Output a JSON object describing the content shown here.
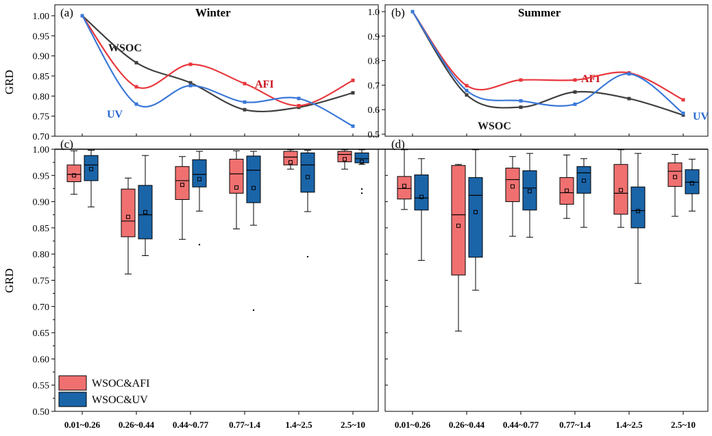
{
  "figure": {
    "panel_letters": [
      "(a)",
      "(b)",
      "(c)",
      "(d)"
    ],
    "titles": [
      "Winter",
      "Summer"
    ],
    "ylabel": "GRD",
    "categories": [
      "0.01~0.26",
      "0.26~0.44",
      "0.44~0.77",
      "0.77~1.4",
      "1.4~2.5",
      "2.5~10"
    ],
    "legend": [
      "WSOC&AFI",
      "WSOC&UV"
    ],
    "colors": {
      "wsoc_line": "#404040",
      "afi_line": "#e8383d",
      "uv_line": "#3a78d8",
      "afi_box": "#f07070",
      "uv_box": "#1a64a8",
      "wsoc_text": "#1a1a1a",
      "afi_text": "#c8141e",
      "uv_text": "#2a6ad0"
    },
    "annotations": {
      "wsoc": "WSOC",
      "afi": "AFI",
      "uv": "UV"
    }
  },
  "chart_data": [
    {
      "type": "line",
      "panel": "(a)",
      "title": "Winter",
      "ylabel": "GRD",
      "ylim": [
        0.7,
        1.0
      ],
      "yticks": [
        "0.70",
        "0.75",
        "0.80",
        "0.85",
        "0.90",
        "0.95",
        "1.00"
      ],
      "categories": [
        "0.01~0.26",
        "0.26~0.44",
        "0.44~0.77",
        "0.77~1.4",
        "1.4~2.5",
        "2.5~10"
      ],
      "series": [
        {
          "name": "WSOC",
          "values": [
            1.0,
            0.883,
            0.833,
            0.766,
            0.772,
            0.808
          ]
        },
        {
          "name": "AFI",
          "values": [
            1.0,
            0.823,
            0.879,
            0.831,
            0.776,
            0.839
          ]
        },
        {
          "name": "UV",
          "values": [
            1.0,
            0.78,
            0.826,
            0.785,
            0.794,
            0.725
          ]
        }
      ]
    },
    {
      "type": "line",
      "panel": "(b)",
      "title": "Summer",
      "ylim": [
        0.5,
        1.0
      ],
      "yticks": [
        "0.5",
        "0.6",
        "0.7",
        "0.8",
        "0.9",
        "1.0"
      ],
      "categories": [
        "0.01~0.26",
        "0.26~0.44",
        "0.44~0.77",
        "0.77~1.4",
        "1.4~2.5",
        "2.5~10"
      ],
      "series": [
        {
          "name": "WSOC",
          "values": [
            1.0,
            0.66,
            0.61,
            0.672,
            0.645,
            0.578
          ]
        },
        {
          "name": "AFI",
          "values": [
            1.0,
            0.698,
            0.721,
            0.721,
            0.75,
            0.64
          ]
        },
        {
          "name": "UV",
          "values": [
            1.0,
            0.678,
            0.636,
            0.622,
            0.746,
            0.585
          ]
        }
      ]
    },
    {
      "type": "box",
      "panel": "(c)",
      "ylabel": "GRD",
      "ylim": [
        0.5,
        1.0
      ],
      "yticks": [
        "0.50",
        "0.55",
        "0.60",
        "0.65",
        "0.70",
        "0.75",
        "0.80",
        "0.85",
        "0.90",
        "0.95",
        "1.00"
      ],
      "categories": [
        "0.01~0.26",
        "0.26~0.44",
        "0.44~0.77",
        "0.77~1.4",
        "1.4~2.5",
        "2.5~10"
      ],
      "series": [
        {
          "name": "WSOC&AFI",
          "boxes": [
            {
              "min": 0.914,
              "q1": 0.938,
              "median": 0.952,
              "q3": 0.97,
              "max": 0.997,
              "mean": 0.95,
              "outliers": []
            },
            {
              "min": 0.762,
              "q1": 0.833,
              "median": 0.863,
              "q3": 0.924,
              "max": 0.945,
              "mean": 0.871,
              "outliers": []
            },
            {
              "min": 0.828,
              "q1": 0.904,
              "median": 0.94,
              "q3": 0.967,
              "max": 0.986,
              "mean": 0.932,
              "outliers": []
            },
            {
              "min": 0.848,
              "q1": 0.916,
              "median": 0.953,
              "q3": 0.981,
              "max": 0.997,
              "mean": 0.927,
              "outliers": []
            },
            {
              "min": 0.962,
              "q1": 0.97,
              "median": 0.985,
              "q3": 0.996,
              "max": 0.999,
              "mean": 0.975,
              "outliers": []
            },
            {
              "min": 0.962,
              "q1": 0.976,
              "median": 0.99,
              "q3": 0.996,
              "max": 0.999,
              "mean": 0.981,
              "outliers": []
            }
          ]
        },
        {
          "name": "WSOC&UV",
          "boxes": [
            {
              "min": 0.89,
              "q1": 0.94,
              "median": 0.97,
              "q3": 0.988,
              "max": 0.998,
              "mean": 0.962,
              "outliers": []
            },
            {
              "min": 0.797,
              "q1": 0.829,
              "median": 0.875,
              "q3": 0.931,
              "max": 0.988,
              "mean": 0.88,
              "outliers": []
            },
            {
              "min": 0.882,
              "q1": 0.928,
              "median": 0.952,
              "q3": 0.98,
              "max": 0.996,
              "mean": 0.943,
              "outliers": [
                0.818
              ]
            },
            {
              "min": 0.855,
              "q1": 0.898,
              "median": 0.96,
              "q3": 0.987,
              "max": 0.996,
              "mean": 0.926,
              "outliers": [
                0.693
              ]
            },
            {
              "min": 0.881,
              "q1": 0.918,
              "median": 0.97,
              "q3": 0.993,
              "max": 0.998,
              "mean": 0.947,
              "outliers": [
                0.795
              ]
            },
            {
              "min": 0.971,
              "q1": 0.974,
              "median": 0.982,
              "q3": 0.993,
              "max": 0.999,
              "mean": 0.976,
              "outliers": [
                0.924,
                0.916
              ]
            }
          ]
        }
      ]
    },
    {
      "type": "box",
      "panel": "(d)",
      "ylim": [
        0.5,
        1.0
      ],
      "categories": [
        "0.01~0.26",
        "0.26~0.44",
        "0.44~0.77",
        "0.77~1.4",
        "1.4~2.5",
        "2.5~10"
      ],
      "series": [
        {
          "name": "WSOC&AFI",
          "boxes": [
            {
              "min": 0.885,
              "q1": 0.905,
              "median": 0.925,
              "q3": 0.948,
              "max": 0.999,
              "mean": 0.93,
              "outliers": []
            },
            {
              "min": 0.653,
              "q1": 0.76,
              "median": 0.875,
              "q3": 0.969,
              "max": 0.971,
              "mean": 0.854,
              "outliers": []
            },
            {
              "min": 0.834,
              "q1": 0.9,
              "median": 0.942,
              "q3": 0.964,
              "max": 0.986,
              "mean": 0.929,
              "outliers": []
            },
            {
              "min": 0.868,
              "q1": 0.895,
              "median": 0.917,
              "q3": 0.946,
              "max": 0.989,
              "mean": 0.921,
              "outliers": []
            },
            {
              "min": 0.851,
              "q1": 0.876,
              "median": 0.916,
              "q3": 0.971,
              "max": 0.999,
              "mean": 0.922,
              "outliers": []
            },
            {
              "min": 0.872,
              "q1": 0.929,
              "median": 0.958,
              "q3": 0.974,
              "max": 0.99,
              "mean": 0.947,
              "outliers": []
            }
          ]
        },
        {
          "name": "WSOC&UV",
          "boxes": [
            {
              "min": 0.788,
              "q1": 0.884,
              "median": 0.907,
              "q3": 0.951,
              "max": 0.982,
              "mean": 0.909,
              "outliers": []
            },
            {
              "min": 0.731,
              "q1": 0.794,
              "median": 0.912,
              "q3": 0.946,
              "max": 0.999,
              "mean": 0.88,
              "outliers": []
            },
            {
              "min": 0.832,
              "q1": 0.884,
              "median": 0.926,
              "q3": 0.959,
              "max": 0.992,
              "mean": 0.92,
              "outliers": []
            },
            {
              "min": 0.851,
              "q1": 0.916,
              "median": 0.955,
              "q3": 0.967,
              "max": 0.982,
              "mean": 0.94,
              "outliers": []
            },
            {
              "min": 0.744,
              "q1": 0.85,
              "median": 0.883,
              "q3": 0.928,
              "max": 0.992,
              "mean": 0.882,
              "outliers": []
            },
            {
              "min": 0.882,
              "q1": 0.915,
              "median": 0.937,
              "q3": 0.961,
              "max": 0.981,
              "mean": 0.935,
              "outliers": []
            }
          ]
        }
      ]
    }
  ]
}
